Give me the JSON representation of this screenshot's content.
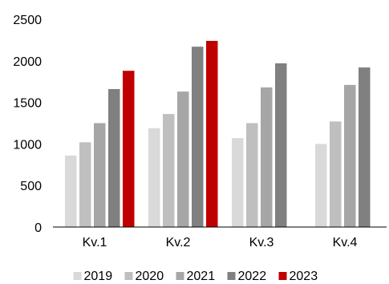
{
  "chart_data": {
    "type": "bar",
    "title": "",
    "xlabel": "",
    "ylabel": "",
    "ylim": [
      0,
      2500
    ],
    "yticks": [
      0,
      500,
      1000,
      1500,
      2000,
      2500
    ],
    "grid": false,
    "legend_position": "bottom",
    "categories": [
      "Kv.1",
      "Kv.2",
      "Kv.3",
      "Kv.4"
    ],
    "series": [
      {
        "name": "2019",
        "color": "#d9d9d9",
        "values": [
          860,
          1190,
          1070,
          1000
        ]
      },
      {
        "name": "2020",
        "color": "#bfbfbf",
        "values": [
          1020,
          1360,
          1250,
          1270
        ]
      },
      {
        "name": "2021",
        "color": "#a6a6a6",
        "values": [
          1250,
          1630,
          1680,
          1710
        ]
      },
      {
        "name": "2022",
        "color": "#808080",
        "values": [
          1660,
          2170,
          1970,
          1920
        ]
      },
      {
        "name": "2023",
        "color": "#c00000",
        "values": [
          1880,
          2240,
          null,
          null
        ]
      }
    ]
  }
}
